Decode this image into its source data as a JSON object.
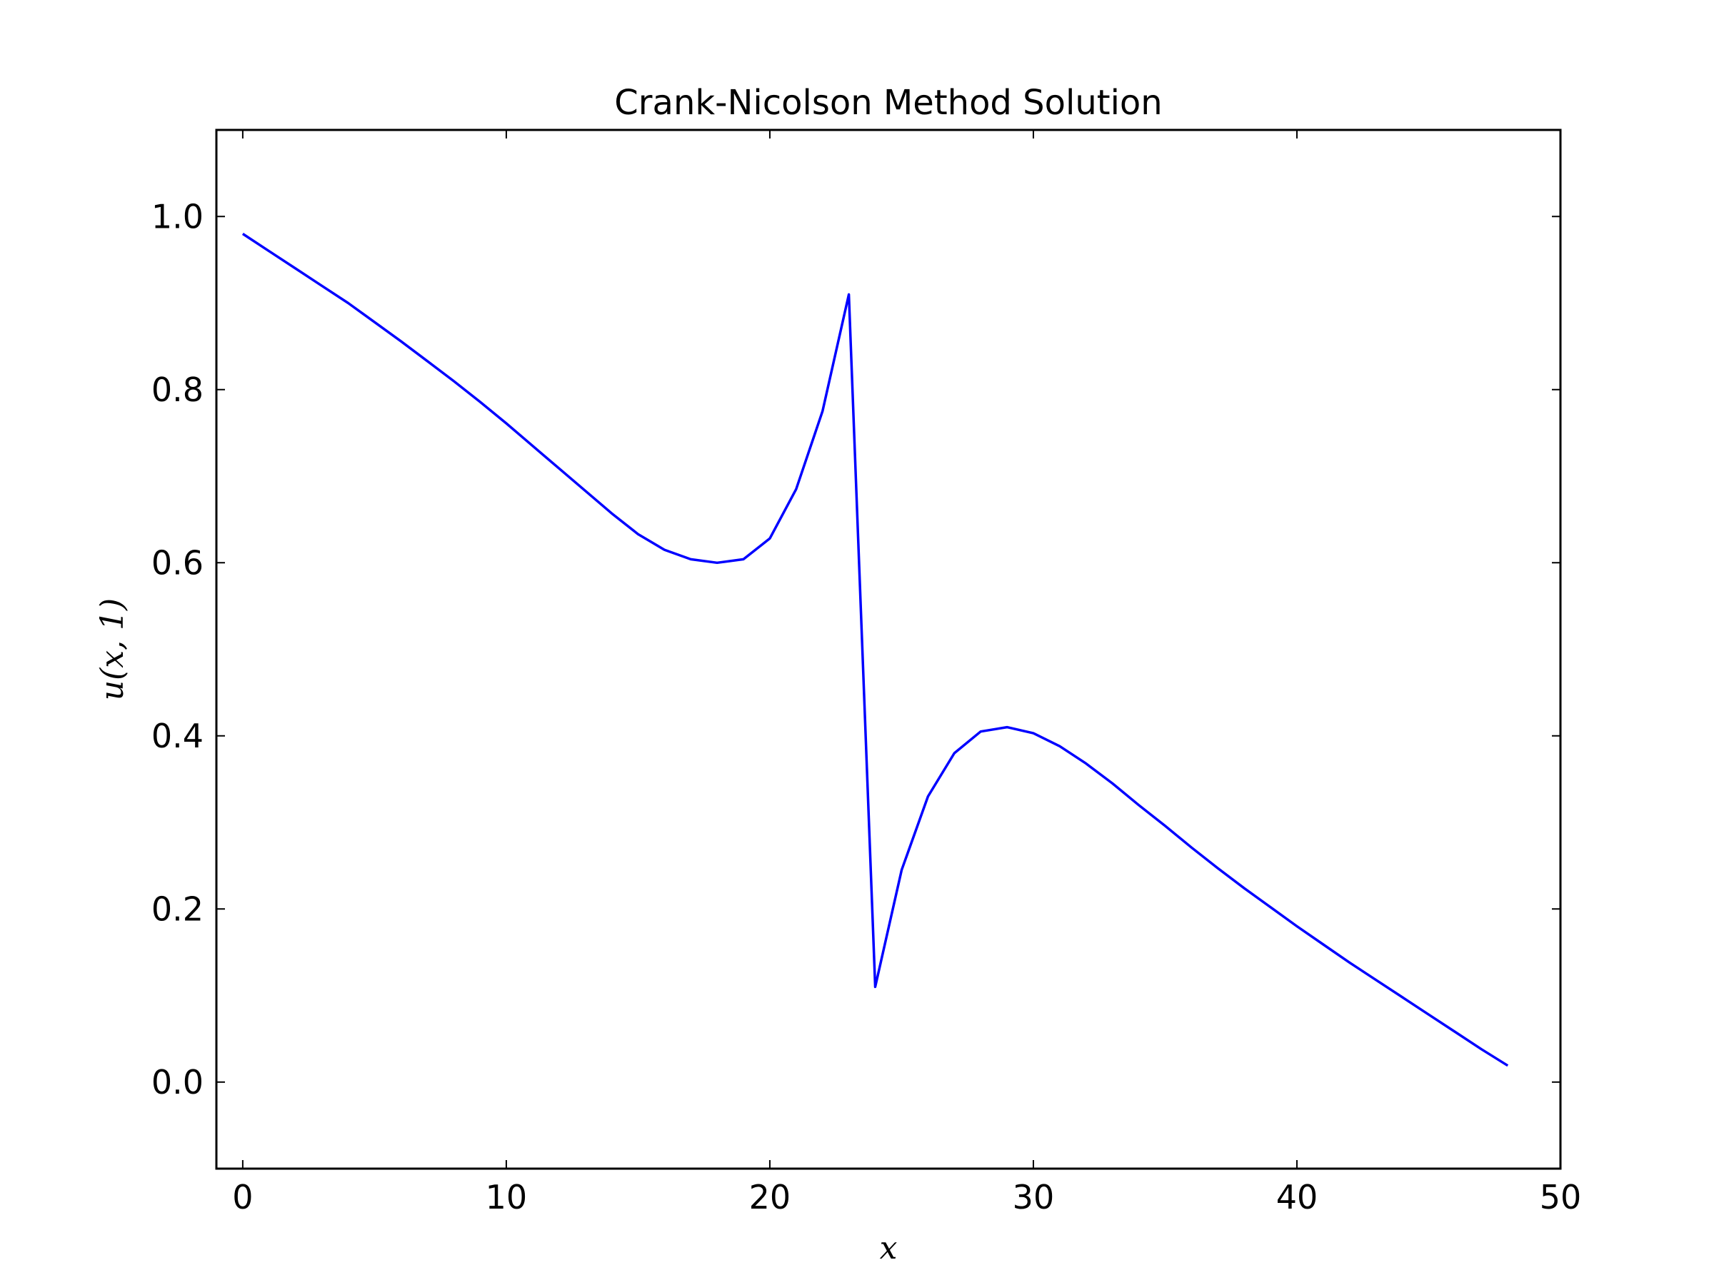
{
  "chart_data": {
    "type": "line",
    "title": "Crank-Nicolson Method Solution",
    "xlabel": "x",
    "ylabel": "u(x, 1)",
    "xlim": [
      -1,
      50
    ],
    "ylim": [
      -0.1,
      1.1
    ],
    "xticks": [
      0,
      10,
      20,
      30,
      40,
      50
    ],
    "xtick_labels": [
      "0",
      "10",
      "20",
      "30",
      "40",
      "50"
    ],
    "yticks": [
      0.0,
      0.2,
      0.4,
      0.6,
      0.8,
      1.0
    ],
    "ytick_labels": [
      "0.0",
      "0.2",
      "0.4",
      "0.6",
      "0.8",
      "1.0"
    ],
    "grid": false,
    "series": [
      {
        "color": "#0000ff",
        "x": [
          0,
          1,
          2,
          3,
          4,
          5,
          6,
          7,
          8,
          9,
          10,
          11,
          12,
          13,
          14,
          15,
          16,
          17,
          18,
          19,
          20,
          21,
          22,
          23,
          24,
          25,
          26,
          27,
          28,
          29,
          30,
          31,
          32,
          33,
          34,
          35,
          36,
          37,
          38,
          39,
          40,
          41,
          42,
          43,
          44,
          45,
          46,
          47,
          48
        ],
        "y": [
          0.98,
          0.96,
          0.94,
          0.92,
          0.9,
          0.878,
          0.856,
          0.833,
          0.81,
          0.786,
          0.761,
          0.735,
          0.709,
          0.683,
          0.657,
          0.633,
          0.615,
          0.604,
          0.6,
          0.604,
          0.628,
          0.685,
          0.775,
          0.91,
          0.11,
          0.245,
          0.33,
          0.38,
          0.405,
          0.41,
          0.403,
          0.388,
          0.368,
          0.345,
          0.32,
          0.296,
          0.271,
          0.247,
          0.224,
          0.202,
          0.18,
          0.159,
          0.138,
          0.118,
          0.098,
          0.078,
          0.058,
          0.038,
          0.019
        ]
      }
    ]
  }
}
